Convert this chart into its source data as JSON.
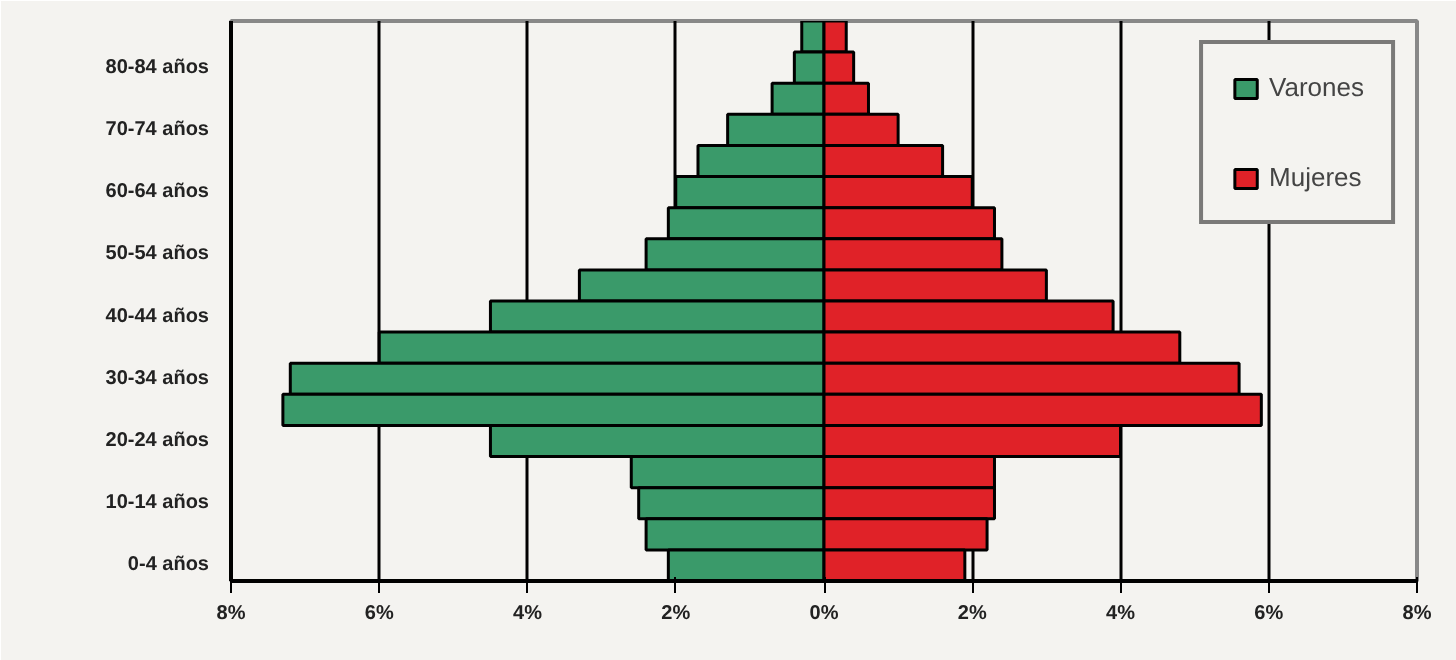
{
  "chart_data": {
    "type": "bar",
    "orientation": "horizontal",
    "categories": [
      null,
      "80-84 años",
      null,
      "70-74 años",
      null,
      "60-64 años",
      null,
      "50-54 años",
      null,
      "40-44 años",
      null,
      "30-34 años",
      null,
      "20-24 años",
      null,
      "10-14 años",
      null,
      "0-4 años"
    ],
    "series": [
      {
        "name": "Varones",
        "color": "#3a9a6a",
        "values": [
          -0.3,
          -0.4,
          -0.7,
          -1.3,
          -1.7,
          -2.0,
          -2.1,
          -2.4,
          -3.3,
          -4.5,
          -6.0,
          -7.2,
          -7.3,
          -4.5,
          -2.6,
          -2.5,
          -2.4,
          -2.1
        ]
      },
      {
        "name": "Mujeres",
        "color": "#e02228",
        "values": [
          0.3,
          0.4,
          0.6,
          1.0,
          1.6,
          2.0,
          2.3,
          2.4,
          3.0,
          3.9,
          4.8,
          5.6,
          5.9,
          4.0,
          2.3,
          2.3,
          2.2,
          1.9
        ]
      }
    ],
    "xlim": [
      -8,
      8
    ],
    "xticks": [
      {
        "value": -8,
        "label": "8%"
      },
      {
        "value": -6,
        "label": "6%"
      },
      {
        "value": -4,
        "label": "4%"
      },
      {
        "value": -2,
        "label": "2%"
      },
      {
        "value": 0,
        "label": "0%"
      },
      {
        "value": 2,
        "label": "2%"
      },
      {
        "value": 4,
        "label": "4%"
      },
      {
        "value": 6,
        "label": "6%"
      },
      {
        "value": 8,
        "label": "8%"
      }
    ],
    "grid": "x",
    "legend": "top right",
    "stacked": true
  }
}
